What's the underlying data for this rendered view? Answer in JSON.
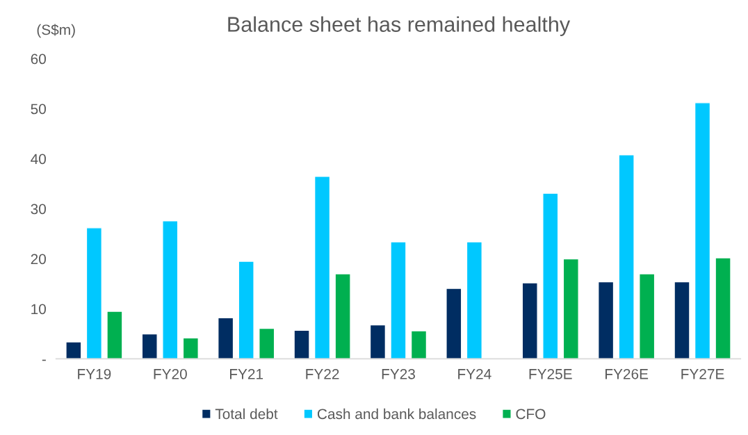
{
  "chart_data": {
    "type": "bar",
    "title": "Balance sheet has remained healthy",
    "ylabel": "(S$m)",
    "categories": [
      "FY19",
      "FY20",
      "FY21",
      "FY22",
      "FY23",
      "FY24",
      "FY25E",
      "FY26E",
      "FY27E"
    ],
    "series": [
      {
        "name": "Total debt",
        "color": "#002d62",
        "values": [
          3.4,
          5.0,
          8.2,
          5.7,
          6.8,
          14.1,
          15.2,
          15.4,
          15.4
        ]
      },
      {
        "name": "Cash and bank balances",
        "color": "#00c8ff",
        "values": [
          26.2,
          27.6,
          19.5,
          36.5,
          23.4,
          23.4,
          33.1,
          40.8,
          51.2
        ]
      },
      {
        "name": "CFO",
        "color": "#00b050",
        "values": [
          9.5,
          4.2,
          6.1,
          17.0,
          5.6,
          null,
          20.0,
          17.0,
          20.2
        ]
      }
    ],
    "ylim": [
      0,
      60
    ],
    "yticks": [
      {
        "value": 0,
        "label": "-"
      },
      10,
      20,
      30,
      40,
      50,
      60
    ],
    "grid": false,
    "legend": "bottom"
  }
}
